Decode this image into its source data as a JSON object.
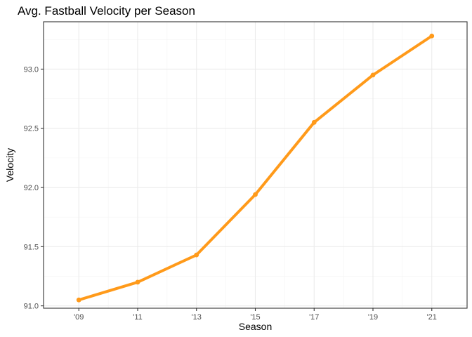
{
  "chart_data": {
    "type": "line",
    "title": "Avg. Fastball Velocity per Season",
    "xlabel": "Season",
    "ylabel": "Velocity",
    "categories": [
      "'09",
      "'11",
      "'13",
      "'15",
      "'17",
      "'19",
      "'21"
    ],
    "x": [
      2009,
      2011,
      2013,
      2015,
      2017,
      2019,
      2021
    ],
    "series": [
      {
        "values": [
          91.05,
          91.2,
          91.43,
          91.94,
          92.55,
          92.95,
          93.28
        ],
        "color": "#FF9A1A"
      }
    ],
    "xlim": [
      2007.8,
      2022.2
    ],
    "ylim": [
      90.98,
      93.4
    ],
    "y_ticks": [
      91.0,
      91.5,
      92.0,
      92.5,
      93.0
    ],
    "y_tick_labels": [
      "91.0",
      "91.5",
      "92.0",
      "92.5",
      "93.0"
    ],
    "grid": true,
    "legend": "none"
  }
}
